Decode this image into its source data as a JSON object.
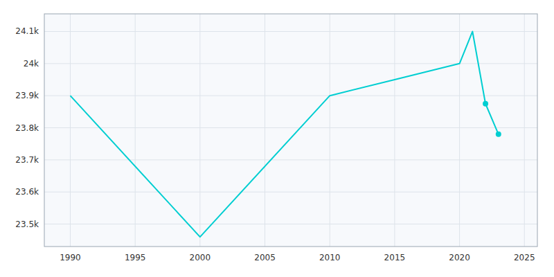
{
  "chart_data": {
    "type": "line",
    "x": [
      1990,
      2000,
      2010,
      2015,
      2020,
      2021,
      2022,
      2023
    ],
    "series": [
      {
        "type": "line",
        "color": "#00CED1",
        "values": [
          23900,
          23460,
          23900,
          23950,
          24000,
          24100,
          23875,
          23780
        ]
      },
      {
        "type": "scatter",
        "marker": "circle",
        "color": "#00CED1",
        "x": [
          2022,
          2023
        ],
        "values": [
          23875,
          23780
        ]
      }
    ],
    "xlim": [
      1988,
      2026
    ],
    "ylim": [
      23430,
      24155
    ],
    "xticks": [
      1990,
      1995,
      2000,
      2005,
      2010,
      2015,
      2020,
      2025
    ],
    "yticks": [
      {
        "value": 23500,
        "label": "23.5k"
      },
      {
        "value": 23600,
        "label": "23.6k"
      },
      {
        "value": 23700,
        "label": "23.7k"
      },
      {
        "value": 23800,
        "label": "23.8k"
      },
      {
        "value": 23900,
        "label": "23.9k"
      },
      {
        "value": 24000,
        "label": "24k"
      },
      {
        "value": 24100,
        "label": "24.1k"
      }
    ],
    "grid": true
  }
}
